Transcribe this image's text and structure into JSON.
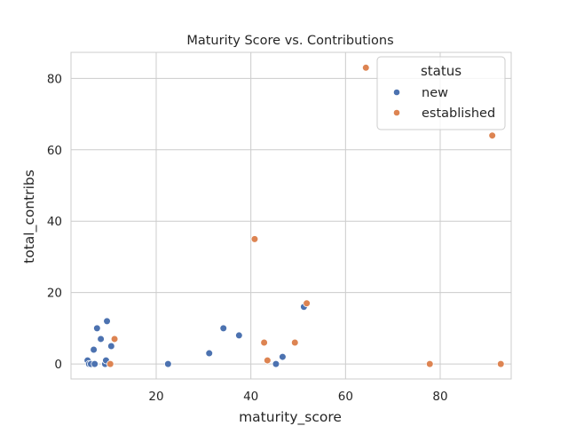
{
  "chart_data": {
    "type": "scatter",
    "title": "Maturity Score vs. Contributions",
    "xlabel": "maturity_score",
    "ylabel": "total_contribs",
    "xlim": [
      2,
      95
    ],
    "ylim": [
      -4.2,
      87.3
    ],
    "xticks": [
      20,
      40,
      60,
      80
    ],
    "yticks": [
      0,
      20,
      40,
      60,
      80
    ],
    "grid": true,
    "legend": {
      "title": "status",
      "placement": "top-right",
      "entries": [
        {
          "label": "new",
          "color": "#4c72b0"
        },
        {
          "label": "established",
          "color": "#dd8452"
        }
      ]
    },
    "series": [
      {
        "name": "new",
        "color": "#4c72b0",
        "points": [
          [
            5.5,
            1
          ],
          [
            5.8,
            0
          ],
          [
            6.2,
            0
          ],
          [
            6.8,
            4
          ],
          [
            7.0,
            0
          ],
          [
            7.5,
            10
          ],
          [
            8.3,
            7
          ],
          [
            9.2,
            0
          ],
          [
            9.4,
            1
          ],
          [
            9.6,
            12
          ],
          [
            10.5,
            5
          ],
          [
            22.5,
            0
          ],
          [
            31.2,
            3
          ],
          [
            34.2,
            10
          ],
          [
            37.5,
            8
          ],
          [
            45.3,
            0
          ],
          [
            46.7,
            2
          ],
          [
            51.2,
            16
          ]
        ]
      },
      {
        "name": "established",
        "color": "#dd8452",
        "points": [
          [
            10.3,
            0
          ],
          [
            11.2,
            7
          ],
          [
            40.8,
            35
          ],
          [
            42.8,
            6
          ],
          [
            43.5,
            1
          ],
          [
            49.3,
            6
          ],
          [
            51.8,
            17
          ],
          [
            64.3,
            83
          ],
          [
            77.8,
            0
          ],
          [
            91.0,
            64
          ],
          [
            92.8,
            0
          ]
        ]
      }
    ]
  }
}
